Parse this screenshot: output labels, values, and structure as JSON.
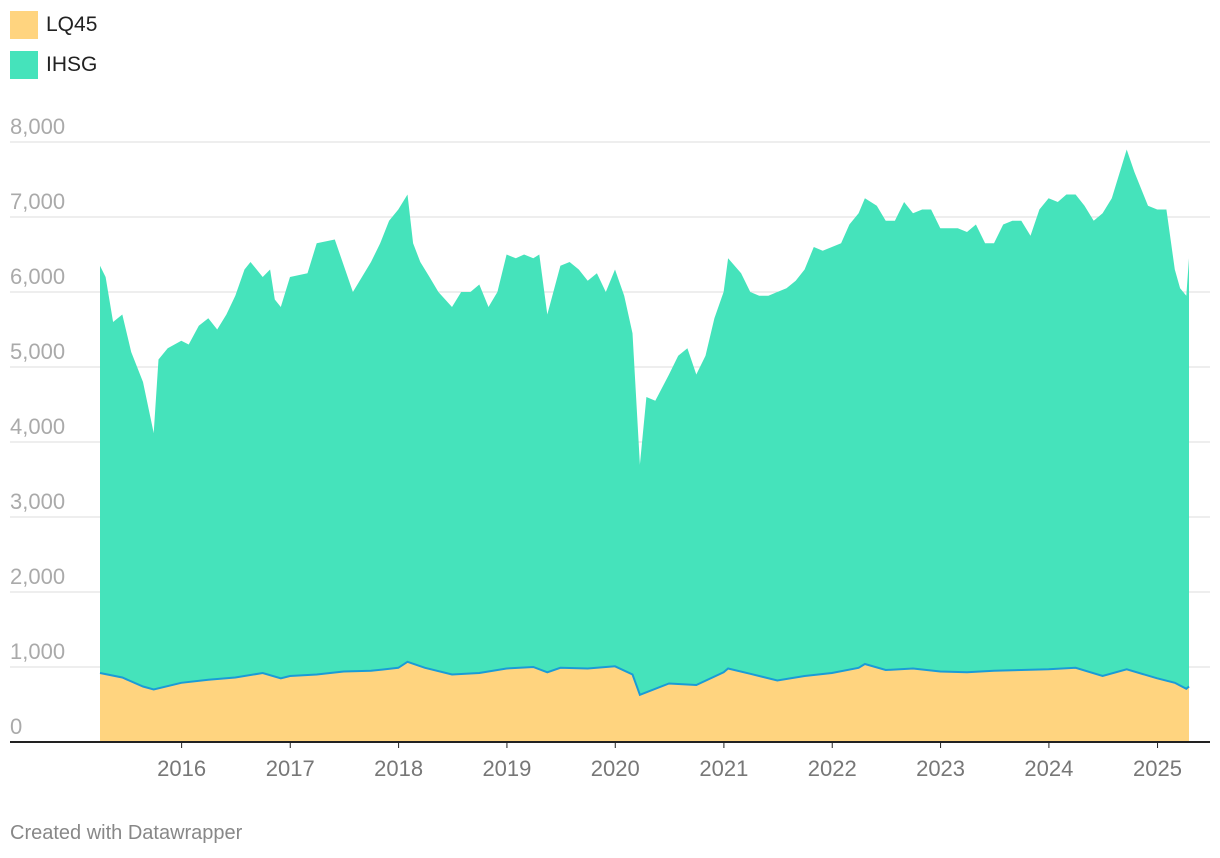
{
  "chart_data": {
    "type": "area",
    "stacked": false,
    "series": [
      {
        "name": "IHSG",
        "color": "#45E3BB",
        "points": [
          [
            "2015-04-01",
            6350
          ],
          [
            "2015-04-20",
            6200
          ],
          [
            "2015-05-15",
            5600
          ],
          [
            "2015-06-15",
            5700
          ],
          [
            "2015-07-15",
            5200
          ],
          [
            "2015-08-24",
            4800
          ],
          [
            "2015-09-29",
            4120
          ],
          [
            "2015-10-15",
            5100
          ],
          [
            "2015-11-15",
            5250
          ],
          [
            "2015-12-31",
            5350
          ],
          [
            "2016-01-25",
            5300
          ],
          [
            "2016-02-28",
            5550
          ],
          [
            "2016-03-31",
            5650
          ],
          [
            "2016-04-30",
            5500
          ],
          [
            "2016-05-31",
            5700
          ],
          [
            "2016-06-30",
            5950
          ],
          [
            "2016-07-31",
            6300
          ],
          [
            "2016-08-20",
            6400
          ],
          [
            "2016-09-30",
            6200
          ],
          [
            "2016-10-25",
            6300
          ],
          [
            "2016-11-10",
            5900
          ],
          [
            "2016-11-30",
            5800
          ],
          [
            "2016-12-31",
            6200
          ],
          [
            "2017-02-28",
            6250
          ],
          [
            "2017-03-31",
            6650
          ],
          [
            "2017-05-31",
            6700
          ],
          [
            "2017-07-31",
            6000
          ],
          [
            "2017-09-30",
            6400
          ],
          [
            "2017-10-31",
            6650
          ],
          [
            "2017-11-30",
            6950
          ],
          [
            "2017-12-31",
            7100
          ],
          [
            "2018-01-31",
            7300
          ],
          [
            "2018-02-19",
            6650
          ],
          [
            "2018-03-15",
            6400
          ],
          [
            "2018-04-15",
            6200
          ],
          [
            "2018-05-15",
            6000
          ],
          [
            "2018-06-30",
            5800
          ],
          [
            "2018-07-31",
            6000
          ],
          [
            "2018-08-31",
            6000
          ],
          [
            "2018-09-30",
            6100
          ],
          [
            "2018-10-31",
            5800
          ],
          [
            "2018-11-30",
            6000
          ],
          [
            "2018-12-31",
            6500
          ],
          [
            "2019-01-31",
            6450
          ],
          [
            "2019-02-28",
            6500
          ],
          [
            "2019-03-31",
            6450
          ],
          [
            "2019-04-20",
            6500
          ],
          [
            "2019-05-17",
            5700
          ],
          [
            "2019-06-30",
            6350
          ],
          [
            "2019-07-31",
            6400
          ],
          [
            "2019-08-31",
            6300
          ],
          [
            "2019-09-30",
            6150
          ],
          [
            "2019-10-31",
            6250
          ],
          [
            "2019-11-30",
            6000
          ],
          [
            "2019-12-31",
            6300
          ],
          [
            "2020-01-31",
            5950
          ],
          [
            "2020-02-28",
            5450
          ],
          [
            "2020-03-24",
            3700
          ],
          [
            "2020-04-15",
            4600
          ],
          [
            "2020-05-15",
            4550
          ],
          [
            "2020-06-30",
            4900
          ],
          [
            "2020-07-31",
            5150
          ],
          [
            "2020-08-31",
            5250
          ],
          [
            "2020-09-30",
            4900
          ],
          [
            "2020-10-31",
            5150
          ],
          [
            "2020-11-30",
            5650
          ],
          [
            "2020-12-31",
            6000
          ],
          [
            "2021-01-15",
            6450
          ],
          [
            "2021-02-28",
            6250
          ],
          [
            "2021-03-31",
            6000
          ],
          [
            "2021-04-30",
            5950
          ],
          [
            "2021-05-31",
            5950
          ],
          [
            "2021-06-30",
            6000
          ],
          [
            "2021-07-31",
            6050
          ],
          [
            "2021-08-31",
            6150
          ],
          [
            "2021-09-30",
            6300
          ],
          [
            "2021-10-31",
            6600
          ],
          [
            "2021-11-30",
            6550
          ],
          [
            "2021-12-31",
            6600
          ],
          [
            "2022-01-31",
            6650
          ],
          [
            "2022-02-28",
            6900
          ],
          [
            "2022-03-31",
            7050
          ],
          [
            "2022-04-21",
            7250
          ],
          [
            "2022-05-31",
            7150
          ],
          [
            "2022-06-30",
            6950
          ],
          [
            "2022-07-31",
            6950
          ],
          [
            "2022-08-31",
            7200
          ],
          [
            "2022-09-30",
            7050
          ],
          [
            "2022-10-31",
            7100
          ],
          [
            "2022-11-30",
            7100
          ],
          [
            "2022-12-31",
            6850
          ],
          [
            "2023-01-31",
            6850
          ],
          [
            "2023-02-28",
            6850
          ],
          [
            "2023-03-31",
            6800
          ],
          [
            "2023-04-30",
            6900
          ],
          [
            "2023-05-31",
            6650
          ],
          [
            "2023-06-30",
            6650
          ],
          [
            "2023-07-31",
            6900
          ],
          [
            "2023-08-31",
            6950
          ],
          [
            "2023-09-30",
            6950
          ],
          [
            "2023-10-31",
            6750
          ],
          [
            "2023-11-30",
            7100
          ],
          [
            "2023-12-31",
            7250
          ],
          [
            "2024-01-31",
            7200
          ],
          [
            "2024-02-29",
            7300
          ],
          [
            "2024-03-31",
            7300
          ],
          [
            "2024-04-30",
            7150
          ],
          [
            "2024-05-31",
            6950
          ],
          [
            "2024-06-30",
            7050
          ],
          [
            "2024-07-31",
            7250
          ],
          [
            "2024-08-31",
            7650
          ],
          [
            "2024-09-19",
            7900
          ],
          [
            "2024-10-15",
            7600
          ],
          [
            "2024-11-30",
            7150
          ],
          [
            "2024-12-31",
            7100
          ],
          [
            "2025-01-31",
            7100
          ],
          [
            "2025-02-28",
            6300
          ],
          [
            "2025-03-18",
            6050
          ],
          [
            "2025-04-08",
            5950
          ],
          [
            "2025-04-17",
            6450
          ]
        ]
      },
      {
        "name": "LQ45",
        "color": "#FFD47F",
        "line_color": "#1A9BD7",
        "points": [
          [
            "2015-04-01",
            920
          ],
          [
            "2015-06-15",
            860
          ],
          [
            "2015-08-24",
            740
          ],
          [
            "2015-09-29",
            700
          ],
          [
            "2015-12-31",
            790
          ],
          [
            "2016-03-31",
            830
          ],
          [
            "2016-06-30",
            860
          ],
          [
            "2016-09-30",
            920
          ],
          [
            "2016-11-30",
            850
          ],
          [
            "2016-12-31",
            880
          ],
          [
            "2017-03-31",
            900
          ],
          [
            "2017-06-30",
            940
          ],
          [
            "2017-09-30",
            950
          ],
          [
            "2017-12-31",
            990
          ],
          [
            "2018-01-31",
            1070
          ],
          [
            "2018-03-31",
            990
          ],
          [
            "2018-06-30",
            900
          ],
          [
            "2018-09-30",
            920
          ],
          [
            "2018-12-31",
            980
          ],
          [
            "2019-03-31",
            1000
          ],
          [
            "2019-05-17",
            930
          ],
          [
            "2019-06-30",
            990
          ],
          [
            "2019-09-30",
            980
          ],
          [
            "2019-12-31",
            1010
          ],
          [
            "2020-02-28",
            900
          ],
          [
            "2020-03-24",
            630
          ],
          [
            "2020-06-30",
            780
          ],
          [
            "2020-09-30",
            760
          ],
          [
            "2020-12-31",
            930
          ],
          [
            "2021-01-15",
            980
          ],
          [
            "2021-03-31",
            910
          ],
          [
            "2021-06-30",
            820
          ],
          [
            "2021-09-30",
            880
          ],
          [
            "2021-12-31",
            920
          ],
          [
            "2022-03-31",
            990
          ],
          [
            "2022-04-21",
            1040
          ],
          [
            "2022-06-30",
            960
          ],
          [
            "2022-09-30",
            980
          ],
          [
            "2022-12-31",
            940
          ],
          [
            "2023-03-31",
            930
          ],
          [
            "2023-06-30",
            950
          ],
          [
            "2023-09-30",
            960
          ],
          [
            "2023-12-31",
            970
          ],
          [
            "2024-03-31",
            990
          ],
          [
            "2024-06-30",
            880
          ],
          [
            "2024-09-19",
            970
          ],
          [
            "2024-12-31",
            850
          ],
          [
            "2025-02-28",
            790
          ],
          [
            "2025-04-08",
            710
          ],
          [
            "2025-04-17",
            740
          ]
        ]
      }
    ],
    "x_range": [
      "2015-04-01",
      "2025-04-17"
    ],
    "x_ticks": [
      {
        "date": "2016-01-01",
        "label": "2016"
      },
      {
        "date": "2017-01-01",
        "label": "2017"
      },
      {
        "date": "2018-01-01",
        "label": "2018"
      },
      {
        "date": "2019-01-01",
        "label": "2019"
      },
      {
        "date": "2020-01-01",
        "label": "2020"
      },
      {
        "date": "2021-01-01",
        "label": "2021"
      },
      {
        "date": "2022-01-01",
        "label": "2022"
      },
      {
        "date": "2023-01-01",
        "label": "2023"
      },
      {
        "date": "2024-01-01",
        "label": "2024"
      },
      {
        "date": "2025-01-01",
        "label": "2025"
      }
    ],
    "y_ticks": [
      {
        "value": 0,
        "label": "0"
      },
      {
        "value": 1000,
        "label": "1,000"
      },
      {
        "value": 2000,
        "label": "2,000"
      },
      {
        "value": 3000,
        "label": "3,000"
      },
      {
        "value": 4000,
        "label": "4,000"
      },
      {
        "value": 5000,
        "label": "5,000"
      },
      {
        "value": 6000,
        "label": "6,000"
      },
      {
        "value": 7000,
        "label": "7,000"
      },
      {
        "value": 8000,
        "label": "8,000"
      }
    ],
    "ylim": [
      0,
      8000
    ],
    "grid": "horizontal",
    "legend_position": "top-left",
    "title": "",
    "xlabel": "",
    "ylabel": ""
  },
  "legend": [
    {
      "label": "LQ45",
      "color": "#FFD47F"
    },
    {
      "label": "IHSG",
      "color": "#45E3BB"
    }
  ],
  "footer": {
    "credit": "Created with Datawrapper"
  }
}
